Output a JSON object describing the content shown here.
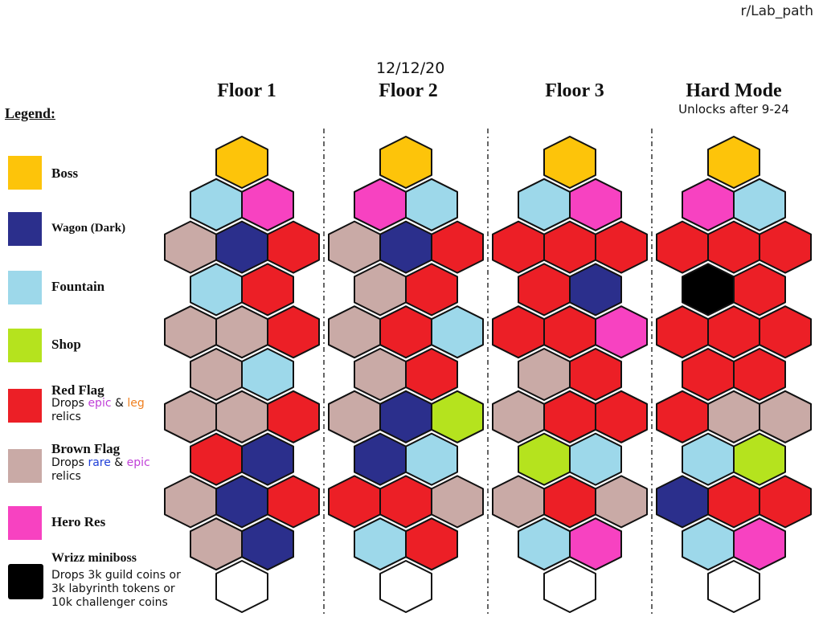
{
  "header": {
    "credit": "r/Lab_path",
    "date": "12/12/20"
  },
  "colors": {
    "boss": "#fdc40a",
    "wagon": "#2b2f8c",
    "fountain": "#9dd8ea",
    "shop": "#b5e31e",
    "red": "#ec1f26",
    "brown": "#c9aaa6",
    "hero": "#f742c1",
    "wrizz": "#000000",
    "empty": "#ffffff"
  },
  "legend": {
    "title": "Legend:",
    "items": [
      {
        "key": "boss",
        "name": "Boss"
      },
      {
        "key": "wagon",
        "name": "Wagon (Dark)"
      },
      {
        "key": "fountain",
        "name": "Fountain"
      },
      {
        "key": "shop",
        "name": "Shop"
      },
      {
        "key": "red",
        "name": "Red Flag",
        "desc_prefix": "Drops ",
        "desc_a": "epic",
        "desc_mid": " & ",
        "desc_b": "leg",
        "desc_suffix": "relics"
      },
      {
        "key": "brown",
        "name": "Brown Flag",
        "desc_prefix": "Drops ",
        "desc_a": "rare",
        "desc_mid": " & ",
        "desc_b": "epic",
        "desc_suffix": "relics"
      },
      {
        "key": "hero",
        "name": "Hero Res"
      },
      {
        "key": "wrizz",
        "name": "Wrizz miniboss",
        "desc_line1": "Drops 3k guild coins or",
        "desc_line2": "3k labyrinth tokens or",
        "desc_line3": "10k challenger coins"
      }
    ]
  },
  "floors": [
    {
      "title": "Floor 1",
      "subtitle": "",
      "rows": [
        [
          "boss"
        ],
        [
          "fountain",
          "hero"
        ],
        [
          "brown",
          "wagon",
          "red"
        ],
        [
          "fountain",
          "red"
        ],
        [
          "brown",
          "brown",
          "red"
        ],
        [
          "brown",
          "fountain"
        ],
        [
          "brown",
          "brown",
          "red"
        ],
        [
          "red",
          "wagon"
        ],
        [
          "brown",
          "wagon",
          "red"
        ],
        [
          "brown",
          "wagon"
        ],
        [
          "empty"
        ]
      ]
    },
    {
      "title": "Floor 2",
      "subtitle": "",
      "rows": [
        [
          "boss"
        ],
        [
          "hero",
          "fountain"
        ],
        [
          "brown",
          "wagon",
          "red"
        ],
        [
          "brown",
          "red"
        ],
        [
          "brown",
          "red",
          "fountain"
        ],
        [
          "brown",
          "red"
        ],
        [
          "brown",
          "wagon",
          "shop"
        ],
        [
          "wagon",
          "fountain"
        ],
        [
          "red",
          "red",
          "brown"
        ],
        [
          "fountain",
          "red"
        ],
        [
          "empty"
        ]
      ]
    },
    {
      "title": "Floor 3",
      "subtitle": "",
      "rows": [
        [
          "boss"
        ],
        [
          "fountain",
          "hero"
        ],
        [
          "red",
          "red",
          "red"
        ],
        [
          "red",
          "wagon"
        ],
        [
          "red",
          "red",
          "hero"
        ],
        [
          "brown",
          "red"
        ],
        [
          "brown",
          "red",
          "red"
        ],
        [
          "shop",
          "fountain"
        ],
        [
          "brown",
          "red",
          "brown"
        ],
        [
          "fountain",
          "hero"
        ],
        [
          "empty"
        ]
      ]
    },
    {
      "title": "Hard Mode",
      "subtitle": "Unlocks after 9-24",
      "rows": [
        [
          "boss"
        ],
        [
          "hero",
          "fountain"
        ],
        [
          "red",
          "red",
          "red"
        ],
        [
          "wrizz",
          "red"
        ],
        [
          "red",
          "red",
          "red"
        ],
        [
          "red",
          "red"
        ],
        [
          "red",
          "brown",
          "brown"
        ],
        [
          "fountain",
          "shop"
        ],
        [
          "wagon",
          "red",
          "red"
        ],
        [
          "fountain",
          "hero"
        ],
        [
          "empty"
        ]
      ]
    }
  ]
}
